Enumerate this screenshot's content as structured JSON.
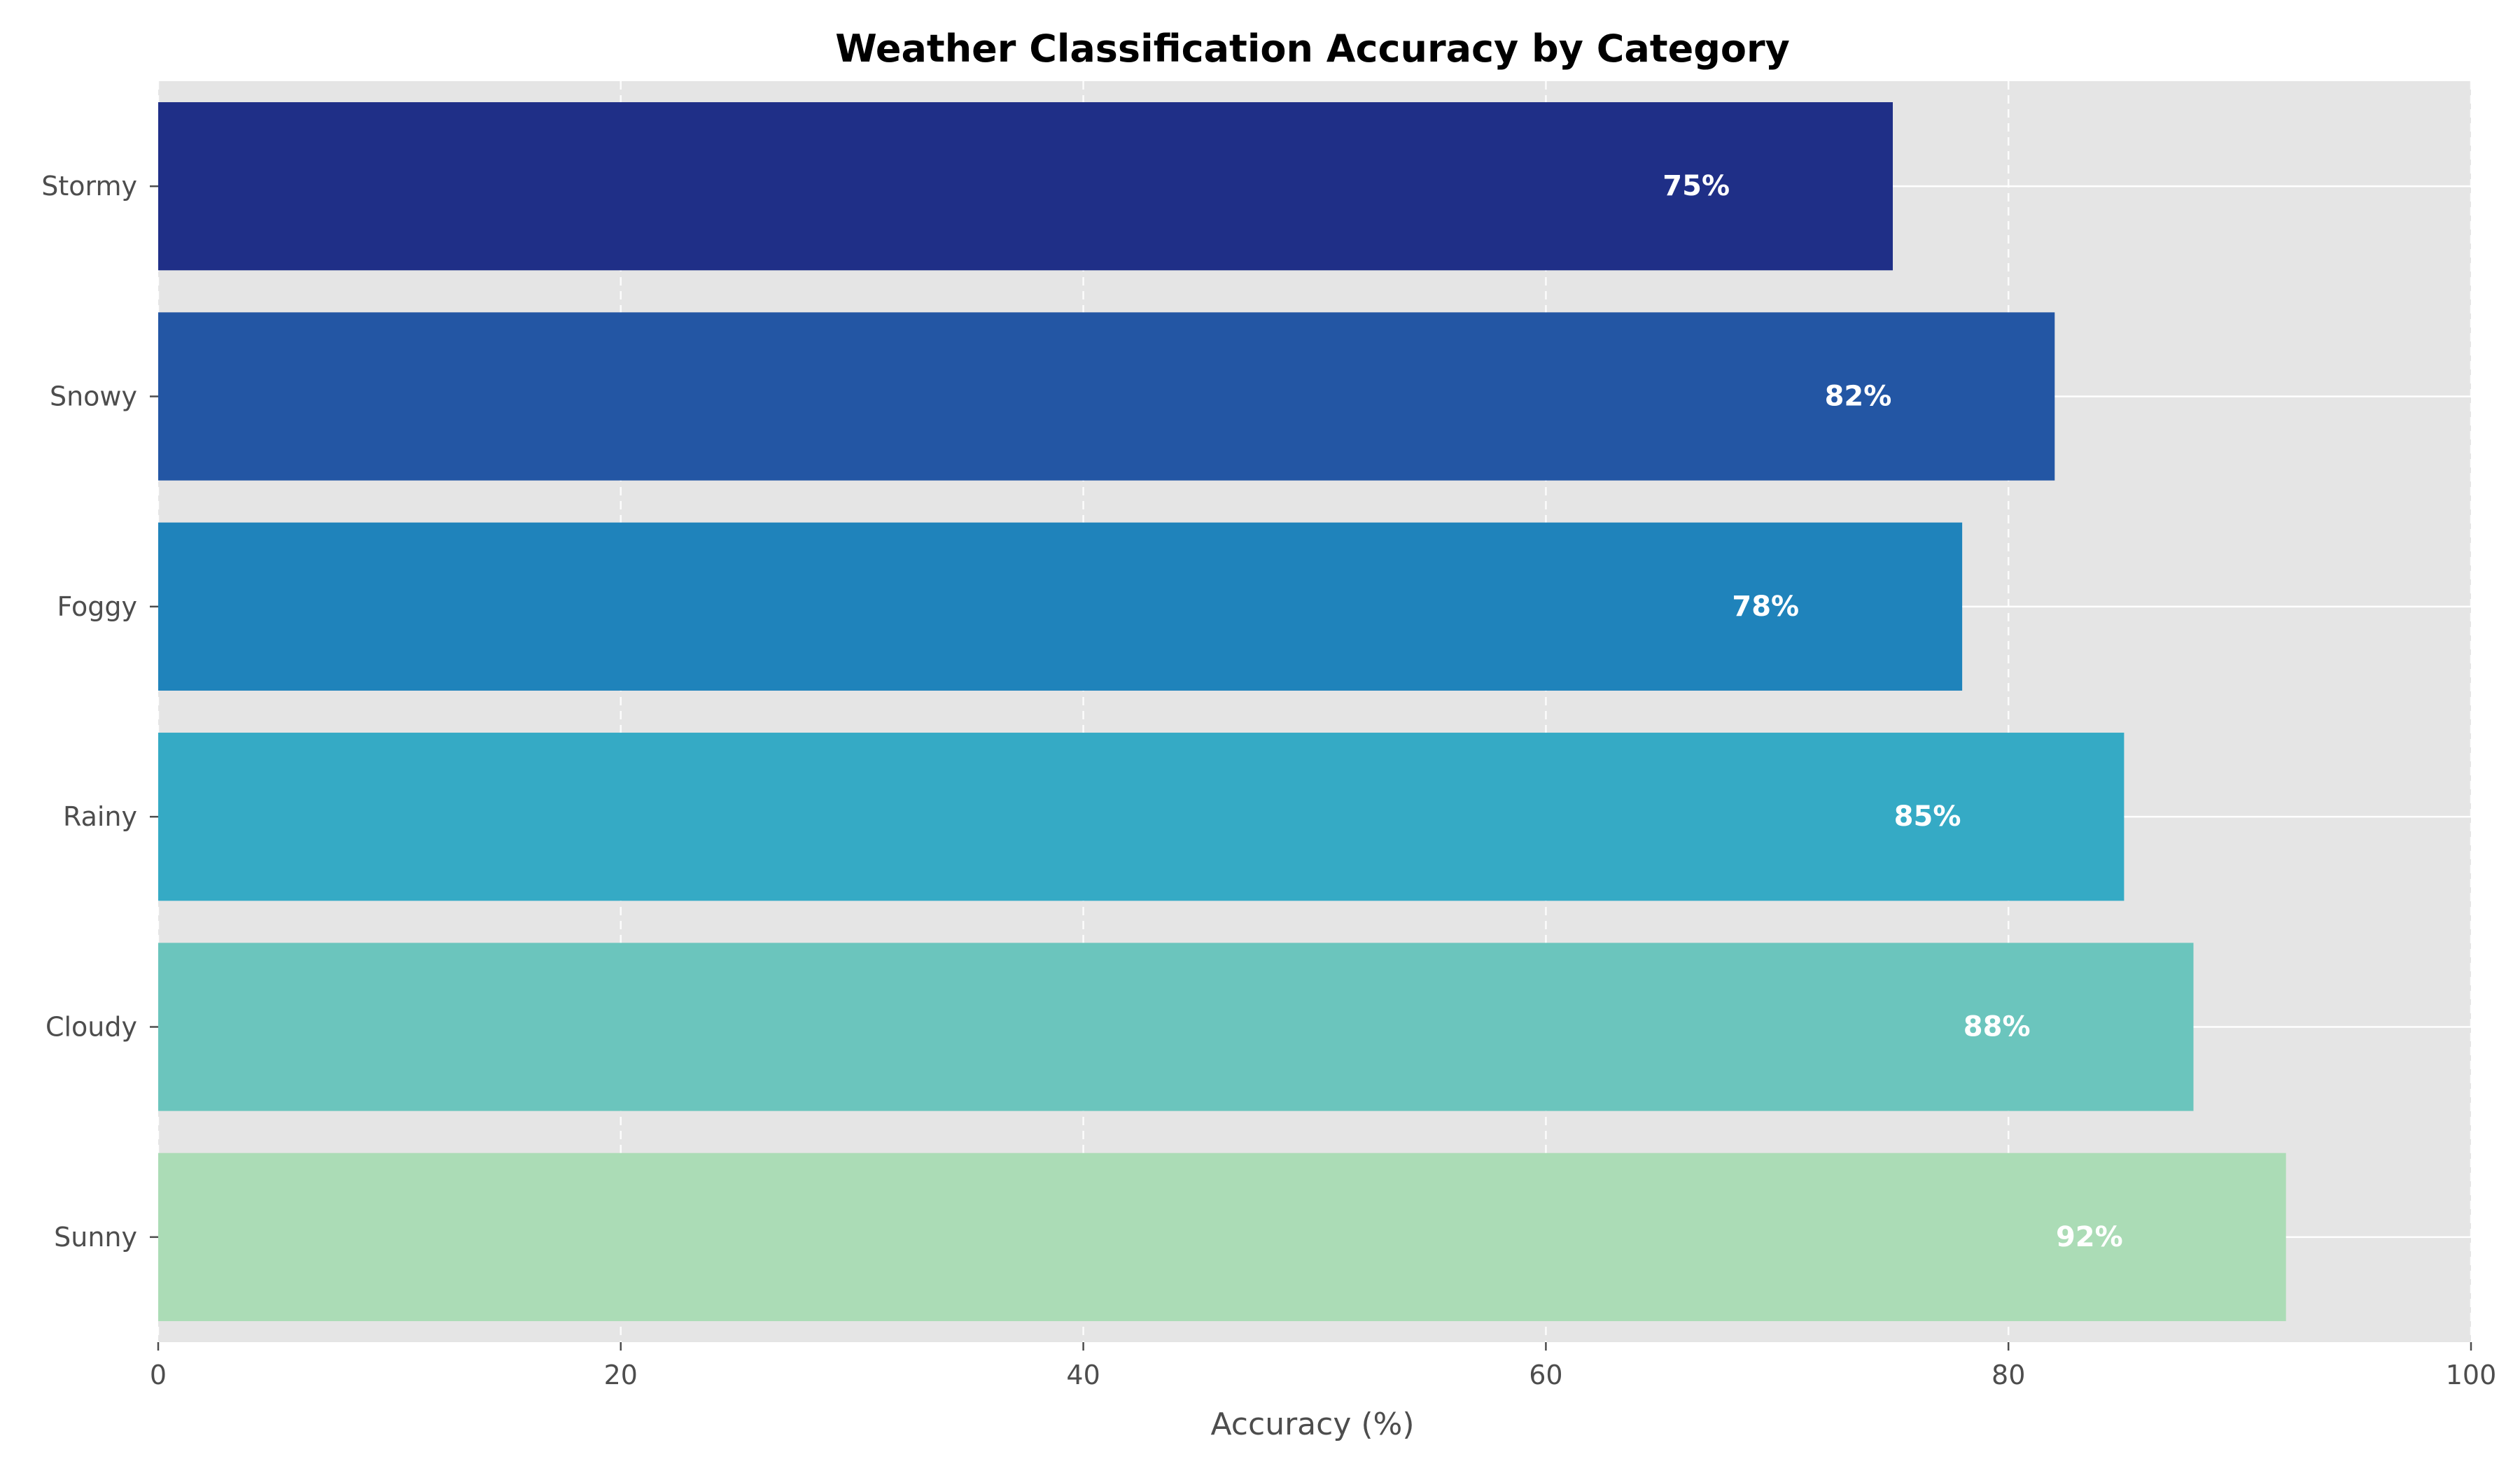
{
  "chart_data": {
    "type": "bar",
    "orientation": "horizontal",
    "title": "Weather Classification Accuracy by Category",
    "xlabel": "Accuracy (%)",
    "ylabel": "",
    "xlim": [
      0,
      100
    ],
    "xticks": [
      0,
      20,
      40,
      60,
      80,
      100
    ],
    "xtick_labels": [
      "0",
      "20",
      "40",
      "60",
      "80",
      "100"
    ],
    "grid": true,
    "grid_style": "dashed-vertical",
    "categories": [
      "Sunny",
      "Cloudy",
      "Rainy",
      "Foggy",
      "Snowy",
      "Stormy"
    ],
    "values": [
      92,
      88,
      85,
      78,
      82,
      75
    ],
    "data_labels": [
      "92%",
      "88%",
      "85%",
      "78%",
      "82%",
      "75%"
    ],
    "colors": [
      "#abdcb6",
      "#6bc5bd",
      "#35aac5",
      "#1f83bb",
      "#2356a4",
      "#1f2f87"
    ],
    "background_color": "#e5e5e5"
  }
}
